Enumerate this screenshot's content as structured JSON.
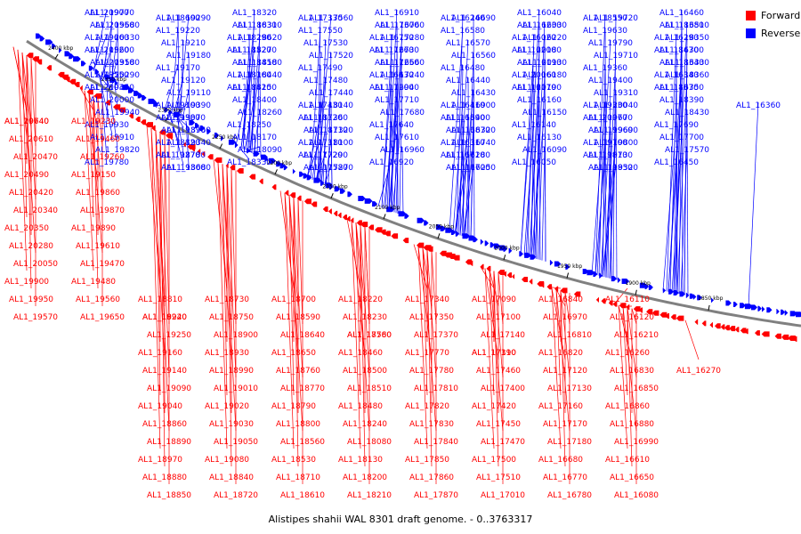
{
  "caption": "Alistipes shahii WAL 8301 draft genome. - 0..3763317",
  "legend": [
    {
      "label": "Forward",
      "color": "#ff0000"
    },
    {
      "label": "Reverse",
      "color": "#0000ff"
    }
  ],
  "colors": {
    "forward": "#ff0000",
    "reverse": "#0000ff",
    "backbone": "#808080",
    "tick": "#000000"
  },
  "scale_ticks": [
    "2400 kbp",
    "2350 kbp",
    "2300 kbp",
    "2250 kbp",
    "2200 kbp",
    "2150 kbp",
    "2100 kbp",
    "2050 kbp",
    "2000 kbp",
    "1950 kbp",
    "1900 kbp",
    "1850 kbp"
  ],
  "reverse_labels": [
    "AL1_20900",
    "AL1_20550",
    "AL1_20330",
    "AL1_20320",
    "AL1_20310",
    "AL1_20290",
    "AL1_20030",
    "AL1_20000",
    "AL1_19940",
    "AL1_19930",
    "AL1_19910",
    "AL1_19820",
    "AL1_19780",
    "AL1_19770",
    "AL1_19680",
    "AL1_19660",
    "AL1_19600",
    "AL1_19580",
    "AL1_19550",
    "AL1_19450",
    "AL1_19390",
    "AL1_19380",
    "AL1_19370",
    "AL1_19340",
    "AL1_19270",
    "AL1_19300",
    "AL1_19290",
    "AL1_19220",
    "AL1_19210",
    "AL1_19180",
    "AL1_19170",
    "AL1_19120",
    "AL1_19110",
    "AL1_19100",
    "AL1_19070",
    "AL1_18960",
    "AL1_18820",
    "AL1_18780",
    "AL1_18680",
    "AL1_18600",
    "AL1_18630",
    "AL1_18620",
    "AL1_18520",
    "AL1_18450",
    "AL1_18440",
    "AL1_18420",
    "AL1_18400",
    "AL1_18260",
    "AL1_18250",
    "AL1_18170",
    "AL1_18090",
    "AL1_18330",
    "AL1_18320",
    "AL1_18310",
    "AL1_18290",
    "AL1_18270",
    "AL1_18180",
    "AL1_18160",
    "AL1_18150",
    "AL1_18140",
    "AL1_18120",
    "AL1_18110",
    "AL1_18100",
    "AL1_17720",
    "AL1_17580",
    "AL1_17560",
    "AL1_17550",
    "AL1_17530",
    "AL1_17520",
    "AL1_17490",
    "AL1_17480",
    "AL1_17440",
    "AL1_17430",
    "AL1_17360",
    "AL1_17320",
    "AL1_17310",
    "AL1_17290",
    "AL1_17270",
    "AL1_17330",
    "AL1_17300",
    "AL1_17280",
    "AL1_17260",
    "AL1_17250",
    "AL1_17240",
    "AL1_17200",
    "AL1_17710",
    "AL1_17680",
    "AL1_17640",
    "AL1_17610",
    "AL1_16960",
    "AL1_16920",
    "AL1_16910",
    "AL1_16760",
    "AL1_16750",
    "AL1_16730",
    "AL1_16660",
    "AL1_16630",
    "AL1_16940",
    "AL1_16900",
    "AL1_16890",
    "AL1_16870",
    "AL1_16740",
    "AL1_16710",
    "AL1_16700",
    "AL1_16690",
    "AL1_16580",
    "AL1_16570",
    "AL1_16560",
    "AL1_16480",
    "AL1_16440",
    "AL1_16430",
    "AL1_16410",
    "AL1_16400",
    "AL1_16320",
    "AL1_16310",
    "AL1_16280",
    "AL1_16250",
    "AL1_16240",
    "AL1_16230",
    "AL1_16220",
    "AL1_16200",
    "AL1_16190",
    "AL1_16180",
    "AL1_16170",
    "AL1_16160",
    "AL1_16150",
    "AL1_16140",
    "AL1_16130",
    "AL1_16090",
    "AL1_16050",
    "AL1_16040",
    "AL1_16030",
    "AL1_16020",
    "AL1_20180",
    "AL1_20130",
    "AL1_20060",
    "AL1_20190",
    "AL1_20040",
    "AL1_20070",
    "AL1_19960",
    "AL1_19800",
    "AL1_19810",
    "AL1_19850",
    "AL1_19720",
    "AL1_19630",
    "AL1_19790",
    "AL1_19710",
    "AL1_19360",
    "AL1_19400",
    "AL1_19310",
    "AL1_19330",
    "AL1_19670",
    "AL1_19690",
    "AL1_19700",
    "AL1_19730",
    "AL1_19320",
    "AL1_18550",
    "AL1_18380",
    "AL1_18350",
    "AL1_18470",
    "AL1_18340",
    "AL1_18360",
    "AL1_18370",
    "AL1_18390",
    "AL1_18430",
    "AL1_17690",
    "AL1_17700",
    "AL1_17570",
    "AL1_16450",
    "AL1_16460",
    "AL1_16510",
    "AL1_16290",
    "AL1_16300",
    "AL1_16330",
    "AL1_16340",
    "AL1_16350",
    "AL1_16360"
  ],
  "forward_labels": [
    "AL1_20740",
    "AL1_20610",
    "AL1_20470",
    "AL1_20490",
    "AL1_20420",
    "AL1_20340",
    "AL1_20350",
    "AL1_20280",
    "AL1_20050",
    "AL1_19900",
    "AL1_19950",
    "AL1_19570",
    "AL1_19640",
    "AL1_19460",
    "AL1_19260",
    "AL1_19150",
    "AL1_19860",
    "AL1_19870",
    "AL1_19890",
    "AL1_19610",
    "AL1_19470",
    "AL1_19480",
    "AL1_19560",
    "AL1_19650",
    "AL1_19230",
    "AL1_19240",
    "AL1_19250",
    "AL1_19160",
    "AL1_19140",
    "AL1_19090",
    "AL1_19040",
    "AL1_18860",
    "AL1_18890",
    "AL1_18970",
    "AL1_18880",
    "AL1_18850",
    "AL1_18810",
    "AL1_18920",
    "AL1_18900",
    "AL1_18930",
    "AL1_18990",
    "AL1_19010",
    "AL1_19020",
    "AL1_19030",
    "AL1_19050",
    "AL1_19080",
    "AL1_18840",
    "AL1_18720",
    "AL1_18730",
    "AL1_18750",
    "AL1_18640",
    "AL1_18650",
    "AL1_18760",
    "AL1_18770",
    "AL1_18790",
    "AL1_18800",
    "AL1_18560",
    "AL1_18530",
    "AL1_18710",
    "AL1_18610",
    "AL1_18700",
    "AL1_18590",
    "AL1_18580",
    "AL1_18460",
    "AL1_18500",
    "AL1_18510",
    "AL1_18480",
    "AL1_18240",
    "AL1_18080",
    "AL1_18130",
    "AL1_18200",
    "AL1_18210",
    "AL1_18220",
    "AL1_18230",
    "AL1_17760",
    "AL1_17770",
    "AL1_17780",
    "AL1_17810",
    "AL1_17820",
    "AL1_17830",
    "AL1_17840",
    "AL1_17850",
    "AL1_17860",
    "AL1_17870",
    "AL1_17340",
    "AL1_17350",
    "AL1_17370",
    "AL1_17390",
    "AL1_17460",
    "AL1_17400",
    "AL1_17420",
    "AL1_17450",
    "AL1_17470",
    "AL1_17500",
    "AL1_17510",
    "AL1_17010",
    "AL1_17090",
    "AL1_17100",
    "AL1_17140",
    "AL1_17110",
    "AL1_17120",
    "AL1_17130",
    "AL1_17160",
    "AL1_17170",
    "AL1_17180",
    "AL1_16680",
    "AL1_16770",
    "AL1_16780",
    "AL1_16840",
    "AL1_16970",
    "AL1_16810",
    "AL1_16820",
    "AL1_16830",
    "AL1_16850",
    "AL1_16860",
    "AL1_16880",
    "AL1_16990",
    "AL1_16610",
    "AL1_16650",
    "AL1_16080",
    "AL1_16110",
    "AL1_16120",
    "AL1_16210",
    "AL1_16260",
    "AL1_16270"
  ]
}
